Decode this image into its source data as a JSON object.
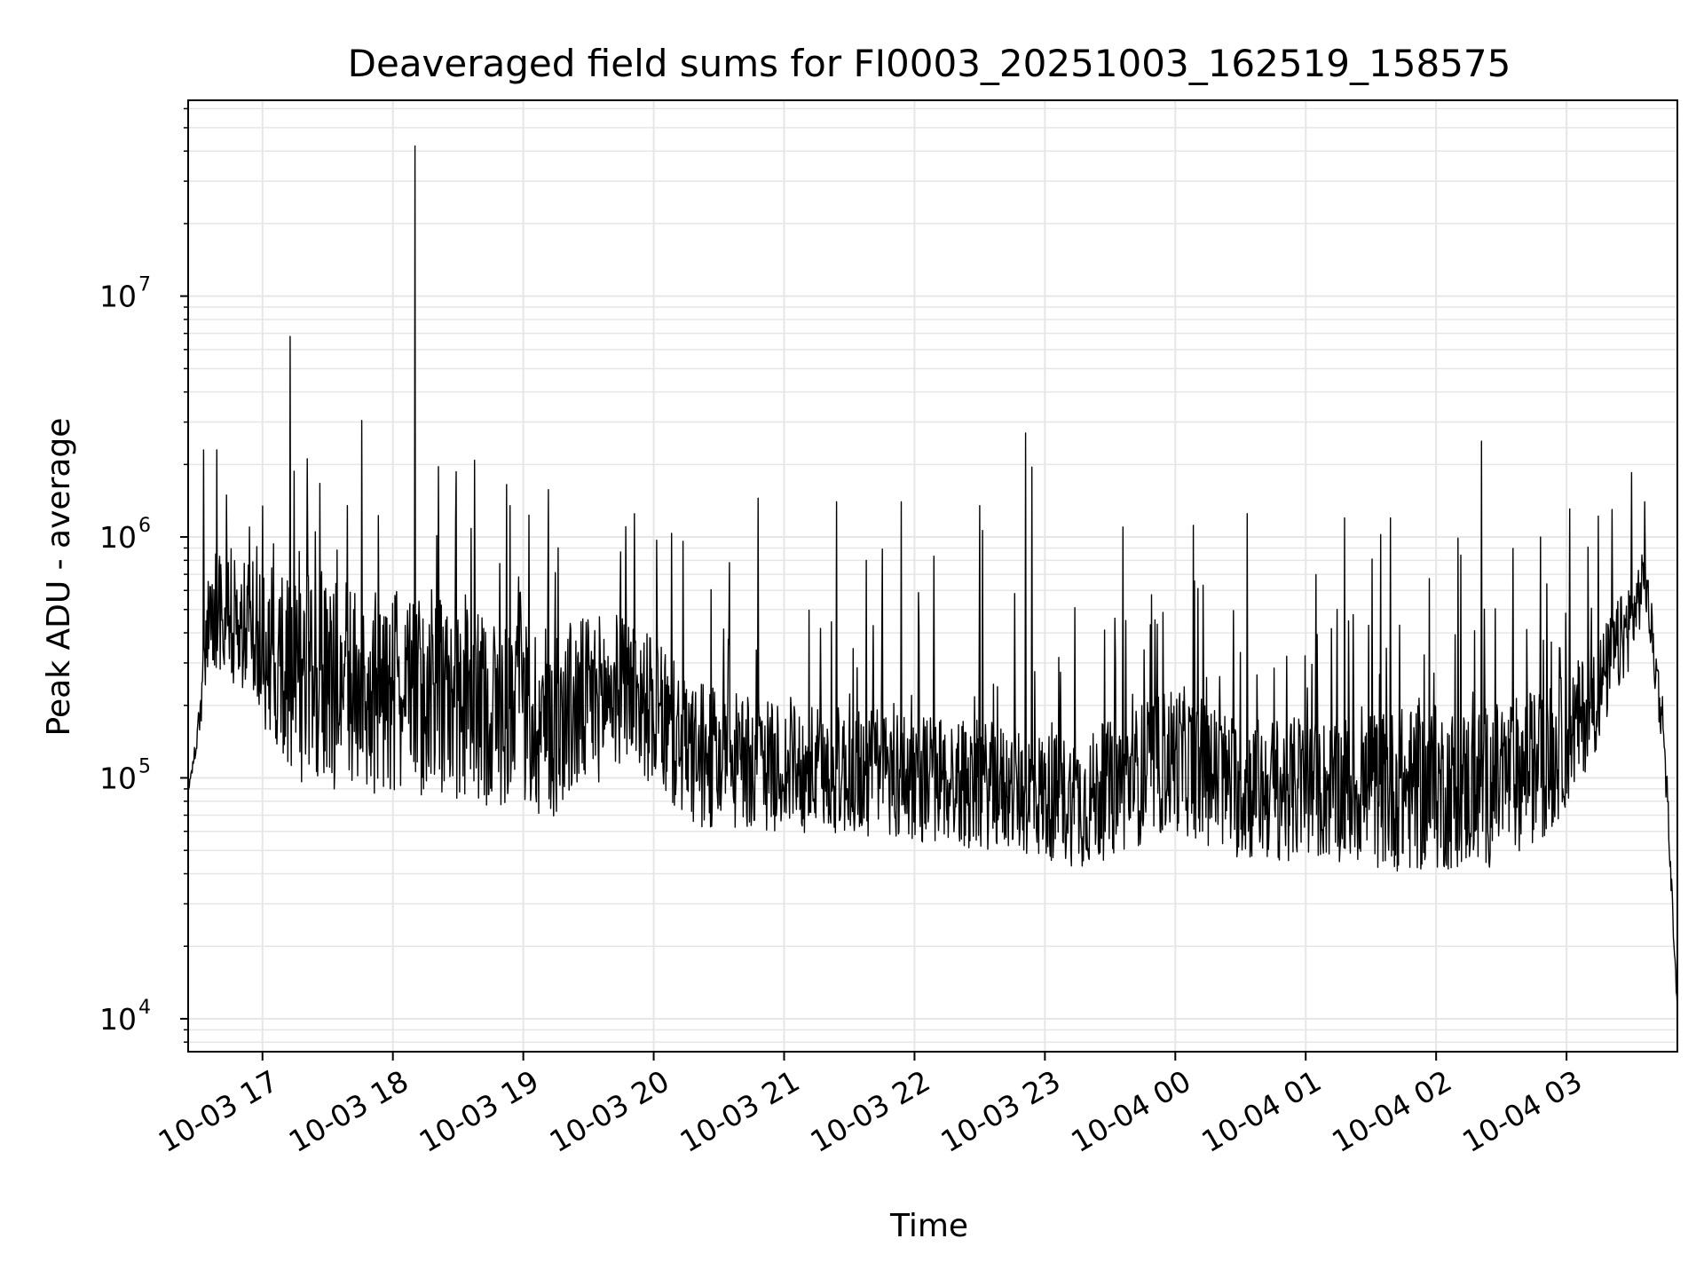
{
  "chart_data": {
    "type": "line",
    "title": "Deaveraged field sums for FI0003_20251003_162519_158575",
    "xlabel": "Time",
    "ylabel": "Peak ADU - average",
    "yscale": "log",
    "ylim": [
      7300,
      65000000
    ],
    "xlim_hours": [
      16.43,
      27.85
    ],
    "grid": true,
    "grid_color": "#e6e6e6",
    "line_color": "#000000",
    "x_ticks": [
      {
        "label": "10-03 17",
        "hour": 17
      },
      {
        "label": "10-03 18",
        "hour": 18
      },
      {
        "label": "10-03 19",
        "hour": 19
      },
      {
        "label": "10-03 20",
        "hour": 20
      },
      {
        "label": "10-03 21",
        "hour": 21
      },
      {
        "label": "10-03 22",
        "hour": 22
      },
      {
        "label": "10-03 23",
        "hour": 23
      },
      {
        "label": "10-04 00",
        "hour": 24
      },
      {
        "label": "10-04 01",
        "hour": 25
      },
      {
        "label": "10-04 02",
        "hour": 26
      },
      {
        "label": "10-04 03",
        "hour": 27
      }
    ],
    "y_ticks": [
      {
        "base": "10",
        "exp": "4",
        "value": 10000
      },
      {
        "base": "10",
        "exp": "5",
        "value": 100000
      },
      {
        "base": "10",
        "exp": "6",
        "value": 1000000
      },
      {
        "base": "10",
        "exp": "7",
        "value": 10000000
      }
    ],
    "baseline_envelope": {
      "hours": [
        16.43,
        16.5,
        16.6,
        16.9,
        17.3,
        18.0,
        18.6,
        19.2,
        19.8,
        20.3,
        21.0,
        21.8,
        22.6,
        23.3,
        24.0,
        24.5,
        25.2,
        25.8,
        26.4,
        26.9,
        27.2,
        27.5,
        27.6,
        27.75,
        27.85
      ],
      "low": [
        85000,
        130000,
        300000,
        200000,
        90000,
        85000,
        80000,
        65000,
        120000,
        60000,
        60000,
        55000,
        50000,
        42000,
        60000,
        45000,
        45000,
        40000,
        42000,
        60000,
        120000,
        300000,
        500000,
        110000,
        10500
      ],
      "high": [
        90000,
        160000,
        900000,
        800000,
        700000,
        600000,
        500000,
        450000,
        500000,
        250000,
        200000,
        200000,
        170000,
        150000,
        250000,
        180000,
        180000,
        200000,
        200000,
        250000,
        350000,
        700000,
        900000,
        200000,
        11000
      ]
    },
    "spikes": [
      {
        "hour": 16.55,
        "value": 2300000
      },
      {
        "hour": 16.65,
        "value": 2300000
      },
      {
        "hour": 16.9,
        "value": 1100000
      },
      {
        "hour": 17.21,
        "value": 6800000
      },
      {
        "hour": 17.65,
        "value": 1350000
      },
      {
        "hour": 18.17,
        "value": 42000000
      },
      {
        "hour": 18.9,
        "value": 1350000
      },
      {
        "hour": 19.85,
        "value": 1250000
      },
      {
        "hour": 20.8,
        "value": 1450000
      },
      {
        "hour": 21.4,
        "value": 1400000
      },
      {
        "hour": 21.9,
        "value": 1400000
      },
      {
        "hour": 22.5,
        "value": 1350000
      },
      {
        "hour": 22.85,
        "value": 2700000
      },
      {
        "hour": 22.9,
        "value": 1950000
      },
      {
        "hour": 23.6,
        "value": 1100000
      },
      {
        "hour": 24.55,
        "value": 1250000
      },
      {
        "hour": 25.3,
        "value": 1200000
      },
      {
        "hour": 25.65,
        "value": 1200000
      },
      {
        "hour": 26.35,
        "value": 2500000
      },
      {
        "hour": 26.8,
        "value": 1000000
      },
      {
        "hour": 27.35,
        "value": 1300000
      },
      {
        "hour": 27.5,
        "value": 1850000
      },
      {
        "hour": 27.6,
        "value": 1400000
      }
    ]
  }
}
